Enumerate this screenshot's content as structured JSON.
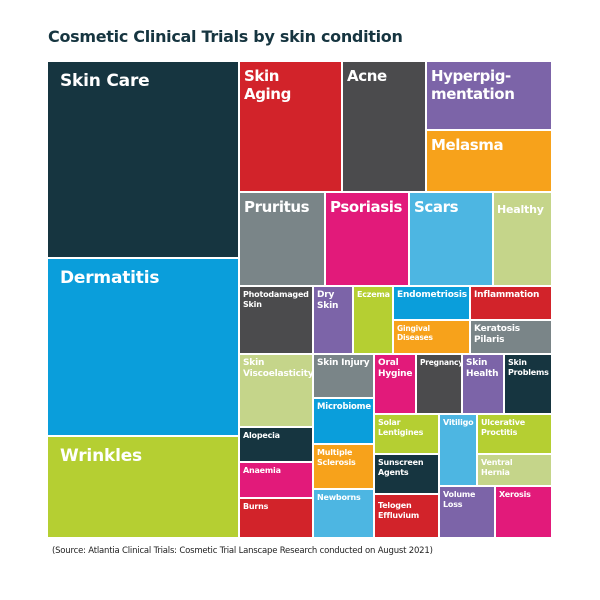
{
  "chart_data": {
    "type": "treemap",
    "title": "Cosmetic Clinical Trials by skin condition",
    "source": "(Source: Atlantia Clinical Trials: Cosmetic Trial Lanscape Research conducted on August 2021)",
    "items": [
      {
        "label": "Skin Care",
        "color": "#163540"
      },
      {
        "label": "Dermatitis",
        "color": "#0a9edb"
      },
      {
        "label": "Wrinkles",
        "color": "#b5cf32"
      },
      {
        "label": "Skin\nAging",
        "color": "#d2232a"
      },
      {
        "label": "Acne",
        "color": "#4b4b4d"
      },
      {
        "label": "Hyperpig-\nmentation",
        "color": "#7c64a8"
      },
      {
        "label": "Melasma",
        "color": "#f7a21b"
      },
      {
        "label": "Pruritus",
        "color": "#7a8588"
      },
      {
        "label": "Psoriasis",
        "color": "#e21a7a"
      },
      {
        "label": "Scars",
        "color": "#4db6e2"
      },
      {
        "label": "Healthy",
        "color": "#c5d58a"
      },
      {
        "label": "Photodamaged\nSkin",
        "color": "#4b4b4d"
      },
      {
        "label": "Dry\nSkin",
        "color": "#7c64a8"
      },
      {
        "label": "Eczema",
        "color": "#b5cf32"
      },
      {
        "label": "Endometriosis",
        "color": "#0a9edb"
      },
      {
        "label": "Inflammation",
        "color": "#d2232a"
      },
      {
        "label": "Gingival Diseases",
        "color": "#f7a21b"
      },
      {
        "label": "Keratosis Pilaris",
        "color": "#7a8588"
      },
      {
        "label": "Skin\nViscoelasticity",
        "color": "#c5d58a"
      },
      {
        "label": "Skin Injury",
        "color": "#7a8588"
      },
      {
        "label": "Oral\nHygine",
        "color": "#e21a7a"
      },
      {
        "label": "Pregnancy",
        "color": "#4b4b4d"
      },
      {
        "label": "Skin\nHealth",
        "color": "#7c64a8"
      },
      {
        "label": "Skin\nProblems",
        "color": "#163540"
      },
      {
        "label": "Microbiome",
        "color": "#0a9edb"
      },
      {
        "label": "Alopecia",
        "color": "#163540"
      },
      {
        "label": "Anaemia",
        "color": "#e21a7a"
      },
      {
        "label": "Burns",
        "color": "#d2232a"
      },
      {
        "label": "Multiple\nSclerosis",
        "color": "#f7a21b"
      },
      {
        "label": "Newborns",
        "color": "#4db6e2"
      },
      {
        "label": "Solar\nLentigines",
        "color": "#b5cf32"
      },
      {
        "label": "Sunscreen\nAgents",
        "color": "#163540"
      },
      {
        "label": "Telogen\nEffluvium",
        "color": "#d2232a"
      },
      {
        "label": "Vitiligo",
        "color": "#4db6e2"
      },
      {
        "label": "Ulcerative\nProctitis",
        "color": "#b5cf32"
      },
      {
        "label": "Ventral\nHernia",
        "color": "#c5d58a"
      },
      {
        "label": "Volume\nLoss",
        "color": "#7c64a8"
      },
      {
        "label": "Xerosis",
        "color": "#e21a7a"
      }
    ]
  }
}
